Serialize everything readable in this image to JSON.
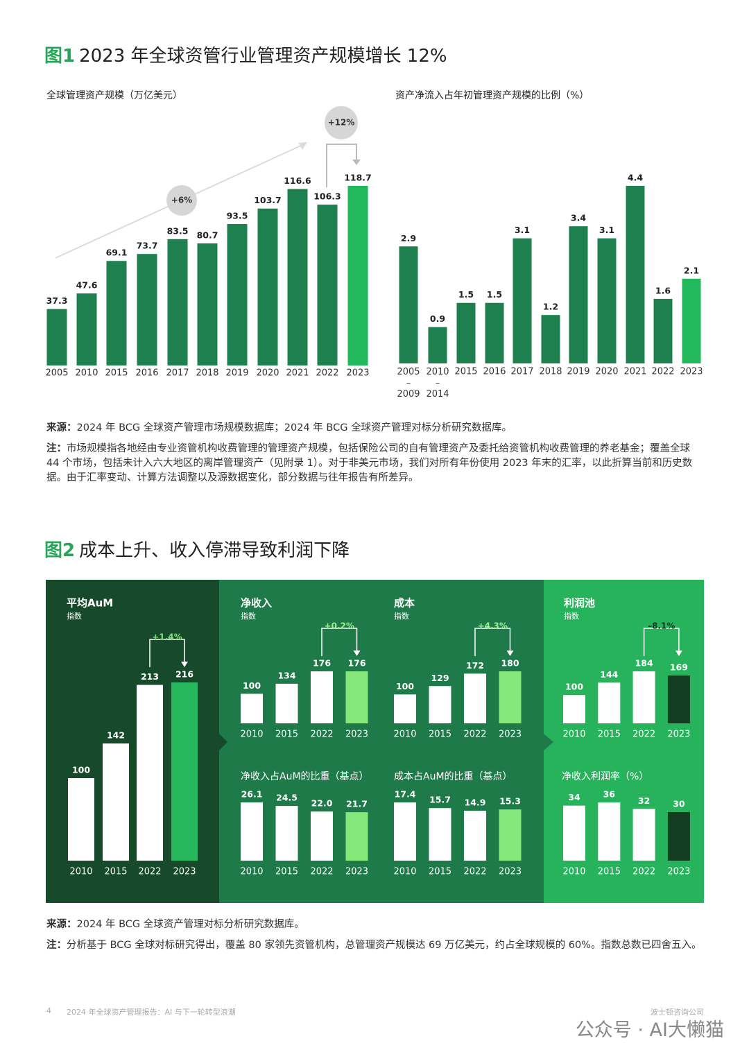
{
  "figures": [
    {
      "number": "图1",
      "title": "2023 年全球资管行业管理资产规模增长 12%",
      "source_label": "来源：",
      "source": "2024 年 BCG 全球资产管理市场规模数据库；2024 年 BCG 全球资产管理对标分析研究数据库。",
      "note_label": "注：",
      "note": "市场规模指各地经由专业资管机构收费管理的管理资产规模，包括保险公司的自有管理资产及委托给资管机构收费管理的养老基金；覆盖全球 44 个市场，包括未计入六大地区的离岸管理资产（见附录 1）。对于非美元市场，我们对所有年份使用 2023 年末的汇率，以此折算当前和历史数据。由于汇率变动、计算方法调整以及源数据变化，部分数据与往年报告有所差异。"
    },
    {
      "number": "图2",
      "title": "成本上升、收入停滞导致利润下降",
      "source_label": "来源：",
      "source": "2024 年 BCG 全球资产管理对标分析研究数据库。",
      "note_label": "注：",
      "note": "分析基于 BCG 全球对标研究得出，覆盖 80 家领先资管机构，总管理资产规模达 69 万亿美元，约占全球规模的 60%。指数总数已四舍五入。"
    }
  ],
  "footer": {
    "page": "4",
    "report": "2024 年全球资产管理报告：AI 与下一轮转型浪潮",
    "publisher": "波士顿咨询公司",
    "watermark": "公众号 · AI大懒猫"
  },
  "chart_data": [
    {
      "type": "bar",
      "title": "全球管理资产规模（万亿美元）",
      "categories": [
        "2005",
        "2010",
        "2015",
        "2016",
        "2017",
        "2018",
        "2019",
        "2020",
        "2021",
        "2022",
        "2023"
      ],
      "values": [
        37.3,
        47.6,
        69.1,
        73.7,
        83.5,
        80.7,
        93.5,
        103.7,
        116.6,
        106.3,
        118.7
      ],
      "colors": [
        "#1e7f4f",
        "#1e7f4f",
        "#1e7f4f",
        "#1e7f4f",
        "#1e7f4f",
        "#1e7f4f",
        "#1e7f4f",
        "#1e7f4f",
        "#1e7f4f",
        "#1e7f4f",
        "#22b85c"
      ],
      "annotations": [
        "+6%",
        "+12%"
      ]
    },
    {
      "type": "bar",
      "title": "资产净流入占年初管理资产规模的比例（%）",
      "categories": [
        "2005–2009",
        "2010–2014",
        "2015",
        "2016",
        "2017",
        "2018",
        "2019",
        "2020",
        "2021",
        "2022",
        "2023"
      ],
      "values": [
        2.9,
        0.9,
        1.5,
        1.5,
        3.1,
        1.2,
        3.4,
        3.1,
        4.4,
        1.6,
        2.1
      ],
      "colors": [
        "#1e7f4f",
        "#1e7f4f",
        "#1e7f4f",
        "#1e7f4f",
        "#1e7f4f",
        "#1e7f4f",
        "#1e7f4f",
        "#1e7f4f",
        "#1e7f4f",
        "#1e7f4f",
        "#22b85c"
      ]
    },
    {
      "type": "bar",
      "title": "平均AuM",
      "subtitle": "指数",
      "categories": [
        "2010",
        "2015",
        "2022",
        "2023"
      ],
      "values": [
        100,
        142,
        213,
        216
      ],
      "colors": [
        "#ffffff",
        "#ffffff",
        "#ffffff",
        "#27b85e"
      ],
      "annotation": "+1.4%",
      "annotation_color": "#7fe07a"
    },
    {
      "type": "bar",
      "title": "净收入",
      "subtitle": "指数",
      "categories": [
        "2010",
        "2015",
        "2022",
        "2023"
      ],
      "values": [
        100,
        134,
        176,
        176
      ],
      "colors": [
        "#ffffff",
        "#ffffff",
        "#ffffff",
        "#86e87a"
      ],
      "annotation": "+0.2%",
      "annotation_color": "#9cf08f"
    },
    {
      "type": "bar",
      "title": "成本",
      "subtitle": "指数",
      "categories": [
        "2010",
        "2015",
        "2022",
        "2023"
      ],
      "values": [
        100,
        129,
        172,
        180
      ],
      "colors": [
        "#ffffff",
        "#ffffff",
        "#ffffff",
        "#86e87a"
      ],
      "annotation": "+4.3%",
      "annotation_color": "#9cf08f"
    },
    {
      "type": "bar",
      "title": "利润池",
      "subtitle": "指数",
      "categories": [
        "2010",
        "2015",
        "2022",
        "2023"
      ],
      "values": [
        100,
        144,
        184,
        169
      ],
      "colors": [
        "#ffffff",
        "#ffffff",
        "#ffffff",
        "#123d20"
      ],
      "annotation": "–8.1%",
      "annotation_color": "#0f3a1f"
    },
    {
      "type": "bar",
      "title": "净收入占AuM的比重（基点）",
      "categories": [
        "2010",
        "2015",
        "2022",
        "2023"
      ],
      "values": [
        26.1,
        24.5,
        22,
        21.7
      ],
      "value_labels": [
        "26.1",
        "24.5",
        "22.0",
        "21.7"
      ],
      "colors": [
        "#ffffff",
        "#ffffff",
        "#ffffff",
        "#86e87a"
      ]
    },
    {
      "type": "bar",
      "title": "成本占AuM的比重（基点）",
      "categories": [
        "2010",
        "2015",
        "2022",
        "2023"
      ],
      "values": [
        17.4,
        15.7,
        14.9,
        15.3
      ],
      "colors": [
        "#ffffff",
        "#ffffff",
        "#ffffff",
        "#86e87a"
      ]
    },
    {
      "type": "bar",
      "title": "净收入利润率（%）",
      "categories": [
        "2010",
        "2015",
        "2022",
        "2023"
      ],
      "values": [
        34,
        36,
        32,
        30
      ],
      "colors": [
        "#ffffff",
        "#ffffff",
        "#ffffff",
        "#123d20"
      ]
    }
  ]
}
